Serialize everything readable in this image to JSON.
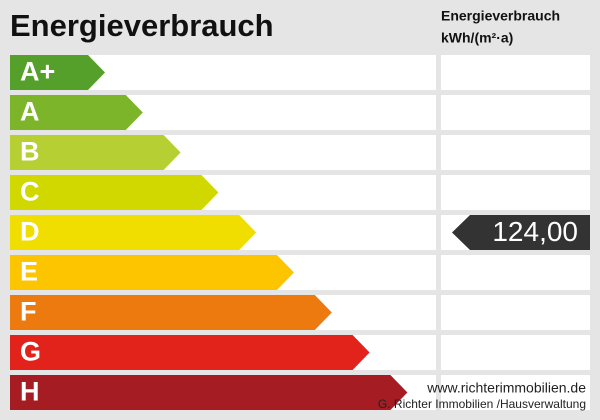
{
  "header": {
    "title": "Energieverbrauch",
    "unit_title": "Energieverbrauch",
    "unit": "kWh/(m²·a)"
  },
  "classes": [
    {
      "label": "A+",
      "color": "#55a02b"
    },
    {
      "label": "A",
      "color": "#7db52a"
    },
    {
      "label": "B",
      "color": "#b6cf33"
    },
    {
      "label": "C",
      "color": "#d1d800"
    },
    {
      "label": "D",
      "color": "#efde00",
      "value": "124,00"
    },
    {
      "label": "E",
      "color": "#fcc500"
    },
    {
      "label": "F",
      "color": "#ec7a0e"
    },
    {
      "label": "G",
      "color": "#e2231c"
    },
    {
      "label": "H",
      "color": "#a51c23"
    }
  ],
  "footer": {
    "website": "www.richterimmobilien.de",
    "company": "G. Richter Immobilien /Hausverwaltung"
  }
}
